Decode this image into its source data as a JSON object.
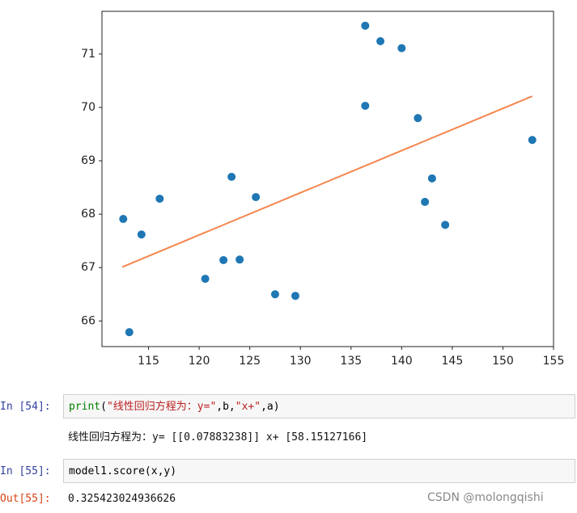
{
  "chart_data": {
    "type": "scatter",
    "series": [
      {
        "type": "scatter",
        "color": "#1f77b4",
        "x": [
          112.5,
          114.3,
          113.1,
          116.1,
          120.6,
          122.4,
          123.2,
          124.0,
          125.6,
          127.5,
          129.5,
          136.4,
          136.4,
          137.9,
          140.0,
          141.6,
          142.3,
          143.0,
          144.3,
          152.9
        ],
        "values": [
          67.91,
          67.62,
          65.79,
          68.29,
          66.79,
          67.14,
          68.7,
          67.15,
          68.32,
          66.5,
          66.47,
          71.53,
          70.03,
          71.24,
          71.11,
          69.8,
          68.23,
          68.67,
          67.8,
          69.39
        ]
      },
      {
        "type": "line",
        "color": "#f4874f",
        "x": [
          112.4,
          152.9
        ],
        "values": [
          67.01,
          70.21
        ]
      }
    ],
    "xlim": [
      110.4,
      155
    ],
    "ylim": [
      65.52,
      71.8
    ],
    "xticks": [
      115,
      120,
      125,
      130,
      135,
      140,
      145,
      150,
      155
    ],
    "yticks": [
      66,
      67,
      68,
      69,
      70,
      71
    ]
  },
  "cells": [
    {
      "prompt": "In  [54]:",
      "code": [
        "print",
        "(",
        "\"线性回归方程为：y=\"",
        ",b,",
        "\"x+\"",
        ",a)"
      ],
      "output": "线性回归方程为：y= [[0.07883238]] x+ [58.15127166]"
    },
    {
      "prompt": "In  [55]:",
      "code": [
        "model1.score(x,y)"
      ],
      "out_prompt": "Out[55]:",
      "output": "0.325423024936626"
    }
  ],
  "watermark": "CSDN @molongqishi"
}
